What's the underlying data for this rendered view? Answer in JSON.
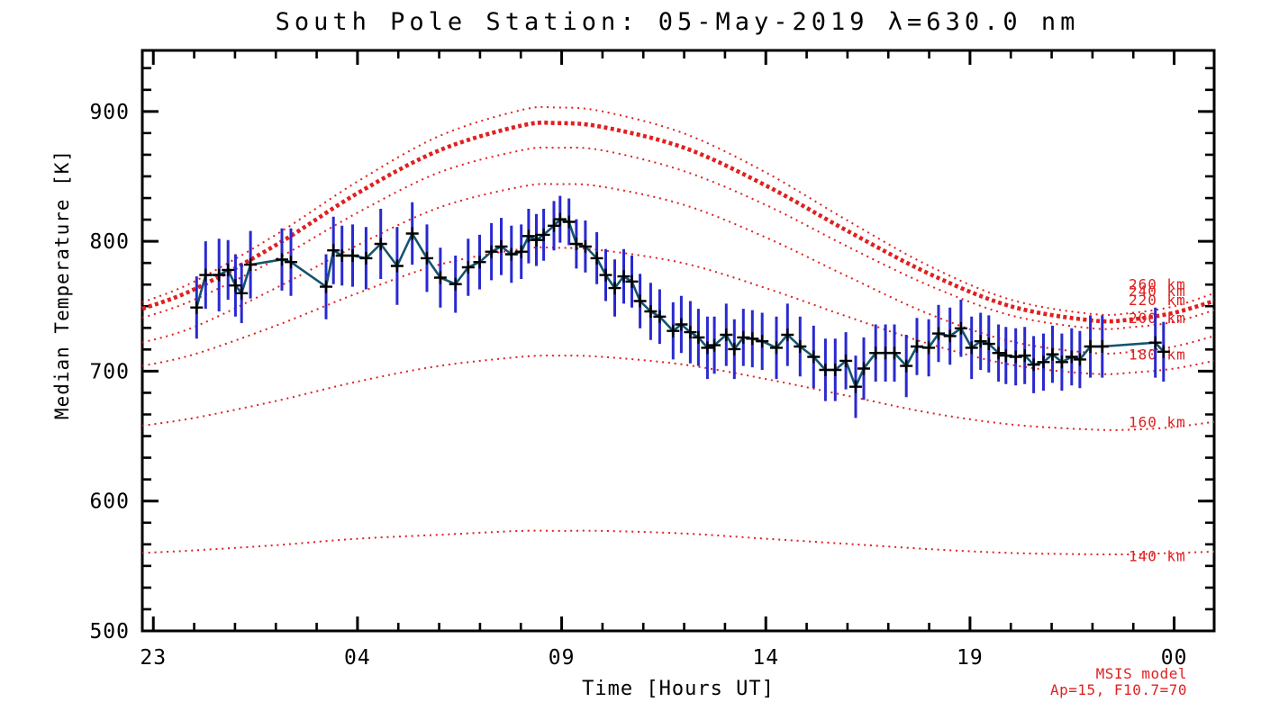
{
  "colors": {
    "model_red": "#e02020",
    "error_bar_blue": "#2929d0",
    "data_line_teal": "#14546e",
    "marker_black": "#000000",
    "frame_black": "#000000",
    "background": "#ffffff"
  },
  "annotation": {
    "line1": "MSIS model",
    "line2": "Ap=15, F10.7=70"
  },
  "chart_data": {
    "type": "line",
    "title": "South Pole Station: 05-May-2019 λ=630.0 nm",
    "xlabel": "Time [Hours UT]",
    "ylabel": "Median Temperature [K]",
    "x_axis": {
      "unit": "hours after 23:00 UT",
      "range": [
        -0.27,
        25.98
      ],
      "major_tick_t": [
        0,
        5,
        10,
        15,
        20,
        25
      ],
      "major_tick_labels": [
        "23",
        "04",
        "09",
        "14",
        "19",
        "00"
      ],
      "minor_tick_every_hours": 1,
      "grid": false
    },
    "y_axis": {
      "unit": "K",
      "range": [
        500,
        947
      ],
      "major_ticks": [
        500,
        600,
        700,
        800,
        900
      ],
      "minor_divisions_per_major": 6,
      "grid": false
    },
    "measured_series": {
      "name": "median temperature with error bars",
      "marker": "plus",
      "point_format": [
        "t_hours_after_23UT",
        "temperature_K",
        "error_K"
      ],
      "points": [
        [
          1.06,
          749,
          24
        ],
        [
          1.28,
          774,
          26
        ],
        [
          1.61,
          774,
          28
        ],
        [
          1.83,
          778,
          23
        ],
        [
          2.01,
          766,
          24
        ],
        [
          2.16,
          760,
          23
        ],
        [
          2.38,
          782,
          26
        ],
        [
          3.15,
          786,
          24
        ],
        [
          3.37,
          784,
          26
        ],
        [
          4.23,
          765,
          25
        ],
        [
          4.41,
          793,
          26
        ],
        [
          4.62,
          789,
          23
        ],
        [
          4.88,
          789,
          24
        ],
        [
          5.21,
          787,
          24
        ],
        [
          5.57,
          798,
          27
        ],
        [
          5.97,
          781,
          30
        ],
        [
          6.34,
          806,
          24
        ],
        [
          6.7,
          787,
          26
        ],
        [
          7.03,
          772,
          23
        ],
        [
          7.4,
          767,
          22
        ],
        [
          7.71,
          780,
          22
        ],
        [
          7.99,
          784,
          21
        ],
        [
          8.28,
          792,
          22
        ],
        [
          8.52,
          796,
          22
        ],
        [
          8.77,
          790,
          22
        ],
        [
          9.01,
          792,
          21
        ],
        [
          9.19,
          804,
          21
        ],
        [
          9.38,
          801,
          20
        ],
        [
          9.56,
          805,
          20
        ],
        [
          9.81,
          812,
          19
        ],
        [
          9.96,
          817,
          18
        ],
        [
          10.18,
          815,
          18
        ],
        [
          10.36,
          798,
          19
        ],
        [
          10.58,
          796,
          20
        ],
        [
          10.86,
          787,
          20
        ],
        [
          11.08,
          774,
          20
        ],
        [
          11.3,
          764,
          22
        ],
        [
          11.52,
          773,
          21
        ],
        [
          11.72,
          769,
          20
        ],
        [
          11.92,
          754,
          21
        ],
        [
          12.18,
          746,
          22
        ],
        [
          12.4,
          742,
          21
        ],
        [
          12.73,
          731,
          22
        ],
        [
          12.93,
          736,
          22
        ],
        [
          13.15,
          730,
          24
        ],
        [
          13.35,
          726,
          22
        ],
        [
          13.57,
          718,
          24
        ],
        [
          13.74,
          720,
          22
        ],
        [
          14.03,
          728,
          24
        ],
        [
          14.23,
          717,
          23
        ],
        [
          14.45,
          726,
          22
        ],
        [
          14.67,
          725,
          22
        ],
        [
          14.91,
          723,
          22
        ],
        [
          15.26,
          718,
          24
        ],
        [
          15.53,
          728,
          24
        ],
        [
          15.84,
          719,
          23
        ],
        [
          16.17,
          711,
          24
        ],
        [
          16.46,
          701,
          24
        ],
        [
          16.7,
          701,
          24
        ],
        [
          16.96,
          708,
          22
        ],
        [
          17.2,
          688,
          24
        ],
        [
          17.4,
          702,
          24
        ],
        [
          17.69,
          714,
          22
        ],
        [
          17.93,
          714,
          22
        ],
        [
          18.15,
          714,
          22
        ],
        [
          18.44,
          704,
          24
        ],
        [
          18.7,
          719,
          22
        ],
        [
          18.99,
          718,
          22
        ],
        [
          19.23,
          729,
          22
        ],
        [
          19.51,
          727,
          22
        ],
        [
          19.78,
          733,
          22
        ],
        [
          20.04,
          718,
          24
        ],
        [
          20.26,
          723,
          22
        ],
        [
          20.46,
          721,
          22
        ],
        [
          20.7,
          714,
          22
        ],
        [
          20.88,
          712,
          22
        ],
        [
          21.12,
          711,
          22
        ],
        [
          21.34,
          712,
          22
        ],
        [
          21.56,
          705,
          22
        ],
        [
          21.8,
          707,
          22
        ],
        [
          22.02,
          713,
          22
        ],
        [
          22.25,
          707,
          22
        ],
        [
          22.49,
          711,
          22
        ],
        [
          22.69,
          709,
          22
        ],
        [
          22.95,
          719,
          24
        ],
        [
          23.24,
          719,
          24
        ],
        [
          24.54,
          722,
          27
        ],
        [
          24.74,
          715,
          23
        ]
      ]
    },
    "model_curves": {
      "name": "MSIS model temperature vs altitude",
      "style": "red dotted",
      "sample_t": [
        -0.27,
        1,
        3,
        5,
        7,
        9,
        9.9,
        11,
        13,
        15,
        17,
        19,
        21,
        23,
        24,
        25,
        25.98
      ],
      "curves": [
        {
          "altitude_km": 260,
          "label": "260 km",
          "label_v": 767,
          "thick": false,
          "values": [
            753,
            769,
            805,
            846,
            881,
            901,
            903,
            900,
            883,
            853,
            816,
            781,
            755,
            744,
            745,
            750,
            760
          ]
        },
        {
          "altitude_km": 240,
          "label": "240 km",
          "label_v": 762,
          "thick": true,
          "values": [
            748,
            763,
            797,
            837,
            870,
            889,
            891,
            888,
            872,
            843,
            808,
            775,
            750,
            739,
            740,
            745,
            754
          ]
        },
        {
          "altitude_km": 220,
          "label": "220 km",
          "label_v": 755,
          "thick": false,
          "values": [
            741,
            755,
            786,
            822,
            853,
            870,
            872,
            870,
            854,
            828,
            796,
            766,
            743,
            733,
            734,
            738,
            747
          ]
        },
        {
          "altitude_km": 200,
          "label": "200 km",
          "label_v": 741,
          "thick": false,
          "values": [
            722,
            734,
            764,
            797,
            826,
            842,
            844,
            842,
            828,
            803,
            773,
            744,
            723,
            714,
            715,
            719,
            727
          ]
        },
        {
          "altitude_km": 180,
          "label": "180 km",
          "label_v": 713,
          "thick": false,
          "values": [
            704,
            713,
            735,
            760,
            782,
            794,
            795,
            793,
            783,
            764,
            742,
            721,
            705,
            698,
            699,
            702,
            708
          ]
        },
        {
          "altitude_km": 160,
          "label": "160 km",
          "label_v": 661,
          "thick": false,
          "values": [
            658,
            664,
            677,
            692,
            704,
            711,
            712,
            711,
            705,
            694,
            681,
            668,
            659,
            655,
            655,
            657,
            661
          ]
        },
        {
          "altitude_km": 140,
          "label": "140 km",
          "label_v": 558,
          "thick": false,
          "values": [
            560,
            562,
            566,
            571,
            574,
            577,
            577,
            577,
            575,
            571,
            567,
            563,
            560,
            559,
            559,
            560,
            561
          ]
        }
      ]
    }
  }
}
